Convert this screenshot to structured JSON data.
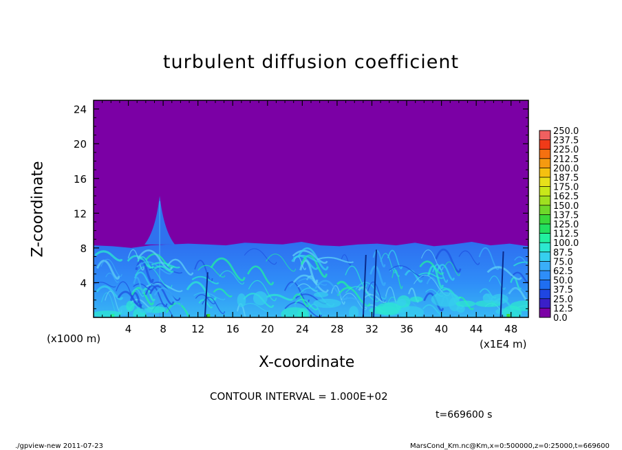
{
  "chart_data": {
    "type": "heatmap",
    "title": "turbulent diffusion coefficient",
    "xlabel": "X-coordinate",
    "ylabel": "Z-coordinate",
    "x_unit": "(x1E4 m)",
    "y_unit": "(x1000 m)",
    "xlim": [
      0,
      50
    ],
    "ylim": [
      0,
      25
    ],
    "x_ticks": [
      4,
      8,
      12,
      16,
      20,
      24,
      28,
      32,
      36,
      40,
      44,
      48
    ],
    "y_ticks": [
      4,
      8,
      12,
      16,
      20,
      24
    ],
    "x_tick_labels": [
      "4",
      "8",
      "12",
      "16",
      "20",
      "24",
      "28",
      "32",
      "36",
      "40",
      "44",
      "48"
    ],
    "y_tick_labels": [
      "4",
      "8",
      "12",
      "16",
      "20",
      "24"
    ],
    "colorbar": {
      "levels": [
        0.0,
        12.5,
        25.0,
        37.5,
        50.0,
        62.5,
        75.0,
        87.5,
        100.0,
        112.5,
        125.0,
        137.5,
        150.0,
        162.5,
        175.0,
        187.5,
        200.0,
        212.5,
        225.0,
        237.5,
        250.0
      ],
      "labels": [
        "0.0",
        "12.5",
        "25.0",
        "37.5",
        "50.0",
        "62.5",
        "75.0",
        "87.5",
        "100.0",
        "112.5",
        "125.0",
        "137.5",
        "150.0",
        "162.5",
        "175.0",
        "187.5",
        "200.0",
        "212.5",
        "225.0",
        "237.5",
        "250.0"
      ],
      "colors": [
        "#7b00a5",
        "#3a1fc8",
        "#1f46e2",
        "#1f6ef0",
        "#2e8ef8",
        "#3aaef8",
        "#36cfee",
        "#2ce8d0",
        "#22f0a0",
        "#22e060",
        "#3ad83a",
        "#6fd82a",
        "#a0e020",
        "#c8e81a",
        "#e8e01a",
        "#f5c010",
        "#f59a10",
        "#f57010",
        "#f03a18",
        "#f06060"
      ]
    },
    "background_value_color": "#7b00a5",
    "turbulent_layer_top_z": [
      8.3,
      8.2,
      8.0,
      8.3,
      8.4,
      8.5,
      8.4,
      8.3,
      8.6,
      8.5,
      8.4,
      8.7,
      8.3,
      8.2,
      8.4,
      8.5,
      8.3,
      8.6,
      8.2,
      8.4,
      8.7,
      8.3,
      8.5,
      8.2
    ],
    "peak": {
      "x": 7.6,
      "z": 14.0
    }
  },
  "texts": {
    "contour_interval": "CONTOUR INTERVAL = 1.000E+02",
    "time": "t=669600 s",
    "footer_left": "./gpview-new   2011-07-23",
    "footer_right": "MarsCond_Km.nc@Km,x=0:500000,z=0:25000,t=669600"
  }
}
